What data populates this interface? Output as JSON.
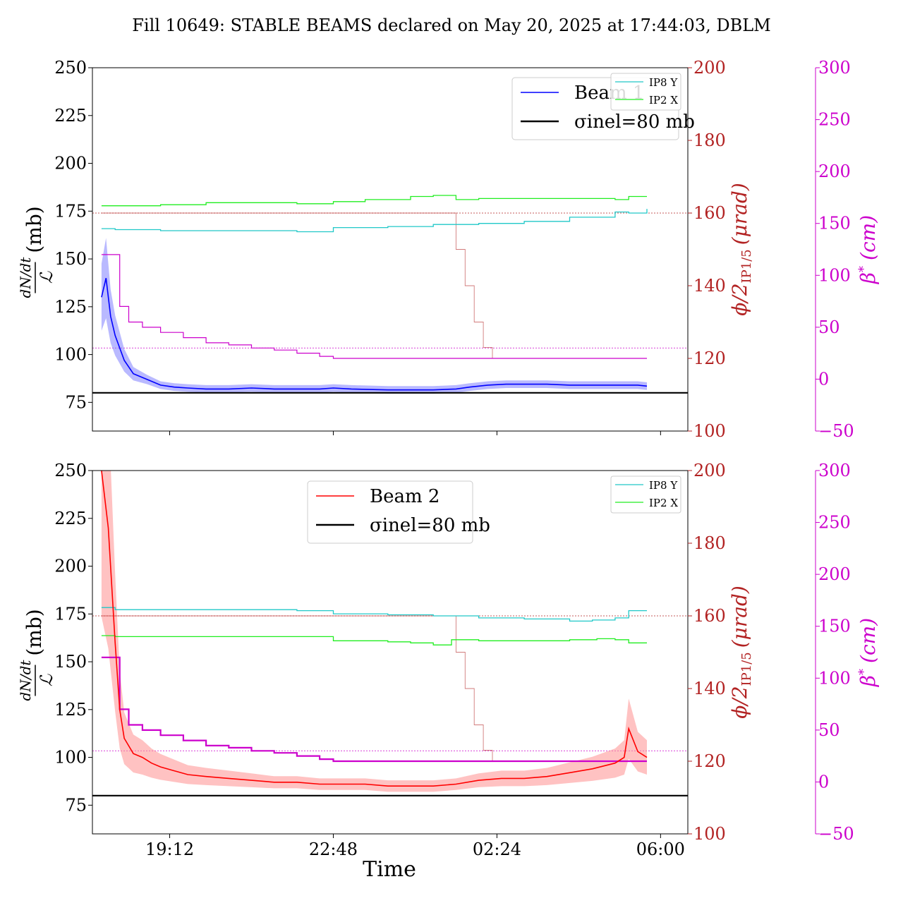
{
  "figure": {
    "title": "Fill 10649: STABLE BEAMS declared on May 20, 2025 at 17:44:03, DBLM",
    "xlabel": "Time",
    "x_ticks": [
      "19:12",
      "22:48",
      "02:24",
      "06:00"
    ]
  },
  "colors": {
    "beam1": "#0000ff",
    "beam1_band": "#8080ff",
    "beam2": "#ff0000",
    "beam2_band": "#ff9090",
    "ip8": "#20c8c8",
    "ip2": "#20ee20",
    "crossing": "#b22222",
    "beta": "#cc00cc",
    "sigma": "#000000"
  },
  "chart_data": [
    {
      "type": "line",
      "panel": "top",
      "ylabel_left_num": "dN/dt",
      "ylabel_left_den": "ℒ",
      "ylabel_left_unit": "(mb)",
      "ylabel_mid": "ϕ/2",
      "ylabel_mid_sub": "IP1/5",
      "ylabel_mid_unit": "(μrad)",
      "ylabel_right": "β",
      "ylabel_right_sup": "*",
      "ylabel_right_unit": "(cm)",
      "ylim_left": [
        60,
        250
      ],
      "yticks_left": [
        "75",
        "100",
        "125",
        "150",
        "175",
        "200",
        "225",
        "250"
      ],
      "ylim_mid": [
        100,
        200
      ],
      "yticks_mid": [
        "100",
        "120",
        "140",
        "160",
        "180",
        "200"
      ],
      "ylim_right": [
        -50,
        300
      ],
      "yticks_right": [
        "−50",
        "0",
        "50",
        "100",
        "150",
        "200",
        "250",
        "300"
      ],
      "legend_main": [
        "Beam 1",
        "σinel=80 mb"
      ],
      "legend_ip": [
        "IP8 Y",
        "IP2 X"
      ],
      "legend_main_position": "upper center-right",
      "legend_ip_position": "top-right",
      "sigma_inel": 80,
      "beam_series": {
        "name": "Beam 1",
        "t": [
          17.7,
          17.8,
          17.9,
          18.0,
          18.2,
          18.4,
          18.7,
          19.0,
          19.3,
          19.6,
          20.0,
          20.5,
          21.0,
          21.5,
          22.0,
          22.5,
          22.8,
          23.2,
          24.0,
          25.0,
          25.5,
          25.8,
          26.2,
          26.6,
          27.0,
          27.5,
          28.0,
          28.5,
          29.0,
          29.5,
          29.7
        ],
        "value": [
          130,
          140,
          120,
          110,
          97,
          90,
          87,
          84,
          83,
          82.5,
          82,
          82,
          82.5,
          82,
          82,
          82,
          82.5,
          82,
          81.5,
          81.5,
          82,
          83,
          84,
          84.5,
          84.5,
          84.5,
          84,
          84,
          84,
          84,
          83.5
        ]
      },
      "ip8_y": {
        "t": [
          17.7,
          18.0,
          19.0,
          20.0,
          21.0,
          22.0,
          22.8,
          24.0,
          25.0,
          26.0,
          27.0,
          28.0,
          29.0,
          29.3,
          29.7
        ],
        "value": [
          145,
          144,
          143,
          143,
          143,
          142,
          146,
          147,
          149,
          150,
          152,
          156,
          161,
          160,
          164
        ]
      },
      "ip2_x": {
        "t": [
          17.7,
          18.0,
          19.0,
          20.0,
          21.0,
          22.0,
          22.8,
          23.5,
          24.5,
          25.0,
          25.5,
          26.0,
          27.0,
          28.0,
          29.0,
          29.3,
          29.7
        ],
        "value": [
          167,
          167,
          168,
          170,
          170,
          169,
          171,
          173,
          176,
          177,
          173,
          174,
          174,
          174,
          173,
          176,
          176
        ]
      },
      "crossing_angle": {
        "t": [
          17.7,
          25.3,
          25.5,
          25.7,
          25.9,
          26.1,
          26.3,
          29.7
        ],
        "value": [
          160,
          160,
          150,
          140,
          130,
          123,
          120,
          120
        ]
      },
      "beta_star": {
        "t": [
          17.7,
          17.95,
          18.1,
          18.3,
          18.6,
          19.0,
          19.5,
          20.0,
          20.5,
          21.0,
          21.5,
          22.0,
          22.5,
          22.8,
          29.7
        ],
        "value": [
          120,
          120,
          70,
          55,
          50,
          45,
          40,
          35,
          33,
          30,
          28,
          25,
          22,
          20,
          20
        ]
      },
      "ref_lines": {
        "crossing_ref": 160,
        "beta_ref": 30
      }
    },
    {
      "type": "line",
      "panel": "bottom",
      "ylabel_left_num": "dN/dt",
      "ylabel_left_den": "ℒ",
      "ylabel_left_unit": "(mb)",
      "ylabel_mid": "ϕ/2",
      "ylabel_mid_sub": "IP1/5",
      "ylabel_mid_unit": "(μrad)",
      "ylabel_right": "β",
      "ylabel_right_sup": "*",
      "ylabel_right_unit": "(cm)",
      "ylim_left": [
        60,
        250
      ],
      "yticks_left": [
        "75",
        "100",
        "125",
        "150",
        "175",
        "200",
        "225",
        "250"
      ],
      "ylim_mid": [
        100,
        200
      ],
      "yticks_mid": [
        "100",
        "120",
        "140",
        "160",
        "180",
        "200"
      ],
      "ylim_right": [
        -50,
        300
      ],
      "yticks_right": [
        "−50",
        "0",
        "50",
        "100",
        "150",
        "200",
        "250",
        "300"
      ],
      "legend_main": [
        "Beam 2",
        "σinel=80 mb"
      ],
      "legend_ip": [
        "IP8 Y",
        "IP2 X"
      ],
      "legend_main_position": "upper center",
      "legend_ip_position": "top-right",
      "sigma_inel": 80,
      "beam_series": {
        "name": "Beam 2",
        "t": [
          17.7,
          17.85,
          18.0,
          18.1,
          18.2,
          18.4,
          18.6,
          18.8,
          19.0,
          19.3,
          19.6,
          20.0,
          20.5,
          21.0,
          21.5,
          22.0,
          22.5,
          23.0,
          23.5,
          24.0,
          24.5,
          25.0,
          25.5,
          26.0,
          26.5,
          27.0,
          27.5,
          28.0,
          28.5,
          29.0,
          29.2,
          29.3,
          29.5,
          29.7
        ],
        "value": [
          250,
          220,
          160,
          125,
          110,
          102,
          100,
          97,
          95,
          93,
          91,
          90,
          89,
          88,
          87,
          87,
          86,
          86,
          86,
          85,
          85,
          85,
          86,
          88,
          89,
          89,
          90,
          92,
          94,
          97,
          100,
          115,
          103,
          100
        ]
      },
      "ip8_y": {
        "t": [
          17.7,
          18.0,
          19.0,
          20.0,
          21.0,
          22.0,
          22.8,
          24.0,
          25.0,
          26.0,
          27.0,
          27.5,
          28.0,
          28.5,
          29.0,
          29.3,
          29.7
        ],
        "value": [
          168,
          166,
          166,
          166,
          166,
          165,
          162,
          161,
          160,
          158,
          157,
          157,
          155,
          156,
          158,
          165,
          165
        ]
      },
      "ip2_x": {
        "t": [
          17.7,
          18.0,
          19.0,
          20.0,
          21.0,
          22.0,
          22.8,
          23.5,
          24.0,
          24.5,
          25.0,
          25.4,
          26.0,
          27.0,
          28.0,
          28.6,
          29.0,
          29.3,
          29.7
        ],
        "value": [
          141,
          140,
          140,
          140,
          140,
          140,
          136,
          136,
          135,
          134,
          132,
          137,
          136,
          136,
          137,
          138,
          137,
          134,
          134
        ]
      },
      "crossing_angle": {
        "t": [
          17.7,
          25.3,
          25.5,
          25.7,
          25.9,
          26.1,
          26.3,
          29.7
        ],
        "value": [
          160,
          160,
          150,
          140,
          130,
          123,
          120,
          120
        ]
      },
      "beta_star": {
        "t": [
          17.7,
          17.95,
          18.1,
          18.3,
          18.6,
          19.0,
          19.5,
          20.0,
          20.5,
          21.0,
          21.5,
          22.0,
          22.5,
          22.8,
          29.7
        ],
        "value": [
          120,
          120,
          70,
          55,
          50,
          45,
          40,
          35,
          33,
          30,
          28,
          25,
          22,
          20,
          20
        ]
      },
      "ref_lines": {
        "crossing_ref": 160,
        "beta_ref": 30
      }
    }
  ]
}
